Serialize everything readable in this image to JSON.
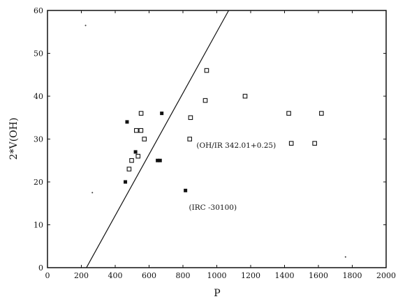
{
  "chart_data": {
    "type": "scatter",
    "xlabel": "P",
    "ylabel": "2*V(OH)",
    "xlim": [
      0,
      2000
    ],
    "ylim": [
      0,
      60
    ],
    "xticks": [
      0,
      200,
      400,
      600,
      800,
      1000,
      1200,
      1400,
      1600,
      1800,
      2000
    ],
    "yticks": [
      0,
      10,
      20,
      30,
      40,
      50,
      60
    ],
    "grid": false,
    "series": [
      {
        "marker": "filled-square",
        "points": [
          {
            "x": 460,
            "y": 20
          },
          {
            "x": 470,
            "y": 34
          },
          {
            "x": 520,
            "y": 27
          },
          {
            "x": 650,
            "y": 25
          },
          {
            "x": 665,
            "y": 25
          },
          {
            "x": 675,
            "y": 36
          },
          {
            "x": 815,
            "y": 18
          }
        ]
      },
      {
        "marker": "open-square",
        "points": [
          {
            "x": 482,
            "y": 23
          },
          {
            "x": 497,
            "y": 25
          },
          {
            "x": 525,
            "y": 32
          },
          {
            "x": 535,
            "y": 26
          },
          {
            "x": 552,
            "y": 32
          },
          {
            "x": 553,
            "y": 36
          },
          {
            "x": 572,
            "y": 30
          },
          {
            "x": 840,
            "y": 30
          },
          {
            "x": 845,
            "y": 35
          },
          {
            "x": 932,
            "y": 39
          },
          {
            "x": 940,
            "y": 46
          },
          {
            "x": 1167,
            "y": 40
          },
          {
            "x": 1425,
            "y": 36
          },
          {
            "x": 1440,
            "y": 29
          },
          {
            "x": 1578,
            "y": 29
          },
          {
            "x": 1618,
            "y": 36
          }
        ]
      }
    ],
    "fit_line": {
      "x1": 230,
      "y1": 0,
      "x2": 1070,
      "y2": 60
    },
    "annotations": [
      {
        "text": "(OH/IR 342.01+0.25)",
        "x": 880,
        "y": 28
      },
      {
        "text": "(IRC -30100)",
        "x": 835,
        "y": 13.5
      }
    ],
    "specks": [
      {
        "x": 225,
        "y": 56.5
      },
      {
        "x": 265,
        "y": 17.5
      },
      {
        "x": 1760,
        "y": 2.5
      }
    ]
  }
}
